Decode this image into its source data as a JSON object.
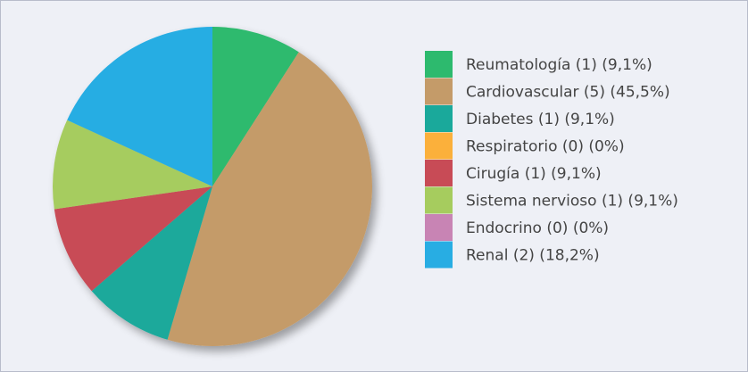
{
  "chart_data": {
    "type": "pie",
    "categories": [
      "Reumatología (1) (9,1%)",
      "Cardiovascular (5) (45,5%)",
      "Diabetes (1) (9,1%)",
      "Respiratorio (0) (0%)",
      "Cirugía (1) (9,1%)",
      "Sistema nervioso (1) (9,1%)",
      "Endocrino (0) (0%)",
      "Renal (2) (18,2%)"
    ],
    "values": [
      1,
      5,
      1,
      0,
      1,
      1,
      0,
      2
    ],
    "colors": [
      "#2dba6e",
      "#c49b69",
      "#1aa99b",
      "#fbb03b",
      "#c84b56",
      "#a6cc5e",
      "#c884b4",
      "#28ade3"
    ],
    "legend": "right"
  }
}
